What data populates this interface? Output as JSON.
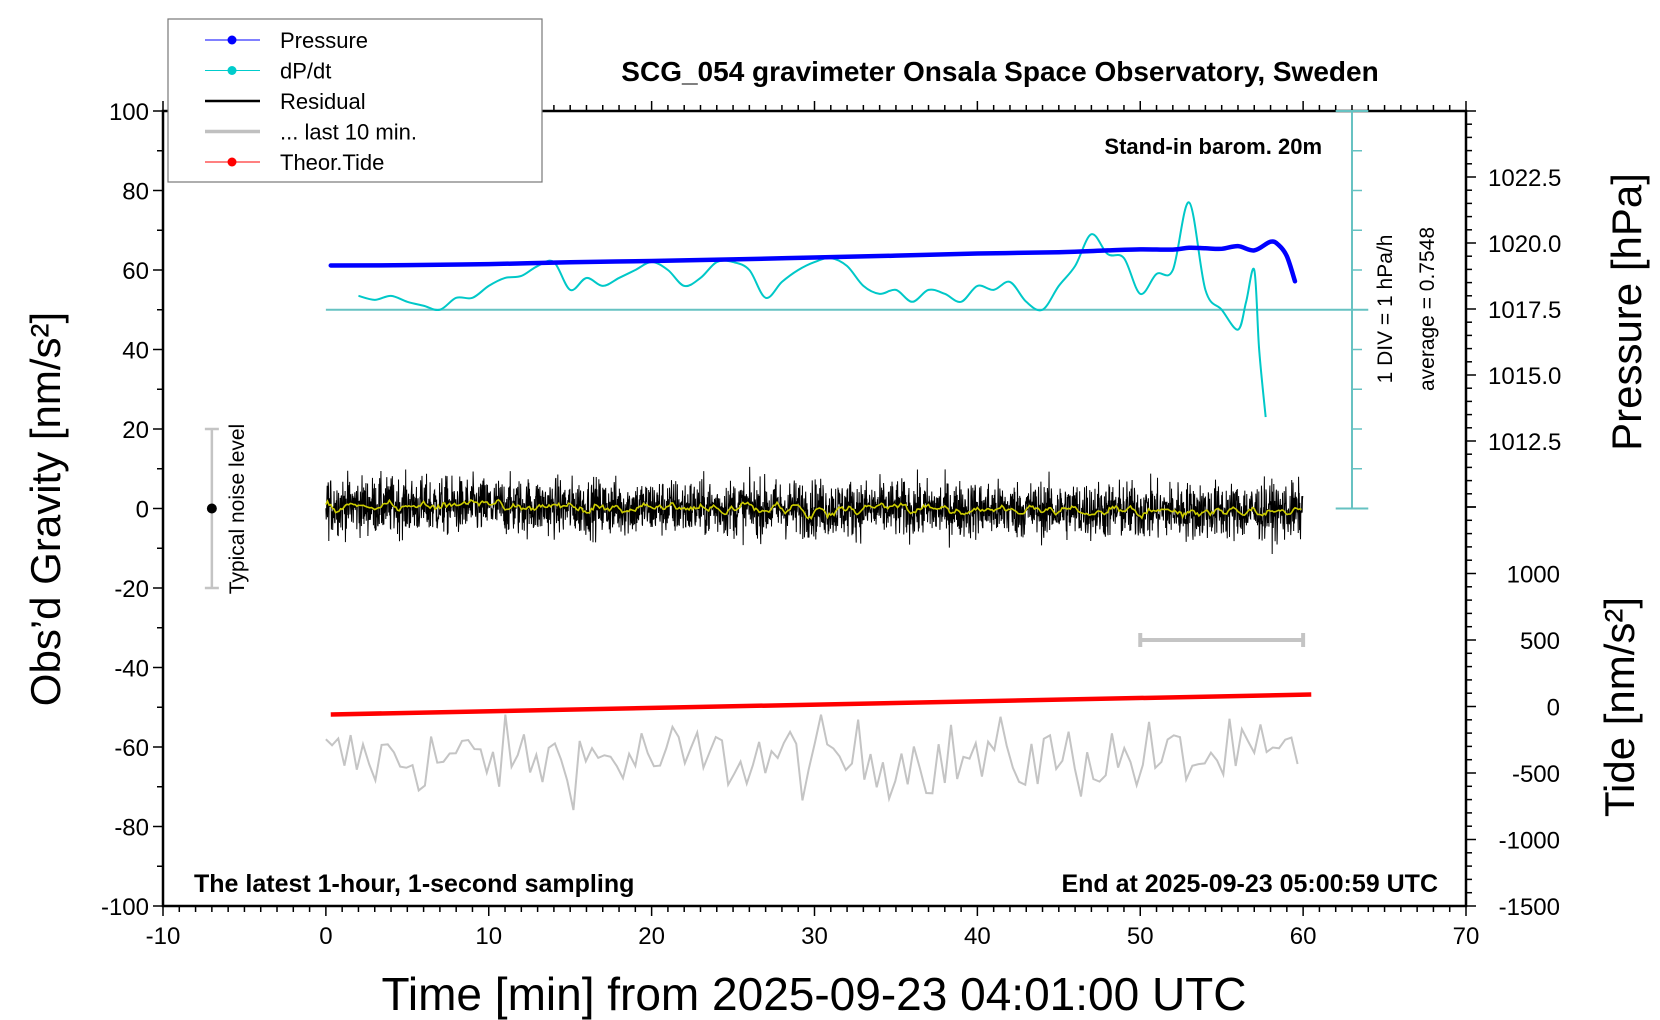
{
  "chart_data": {
    "type": "line",
    "title": "SCG_054 gravimeter Onsala Space Observatory, Sweden",
    "xlabel": "Time [min] from 2025-09-23 04:01:00 UTC",
    "ylabel": "Obs’d Gravity [nm/s²]",
    "y2label": "Pressure [hPa]",
    "y3label": "Tide [nm/s²]",
    "xlim": [
      -10,
      70
    ],
    "ylim": [
      -100,
      100
    ],
    "y2lim": [
      1010,
      1025
    ],
    "y3lim": [
      -1500,
      1500
    ],
    "grid": false,
    "legend_position": "top-left",
    "x_ticks": [
      "-10",
      "0",
      "10",
      "20",
      "30",
      "40",
      "50",
      "60",
      "70"
    ],
    "y_ticks": [
      "100",
      "80",
      "60",
      "40",
      "20",
      "0",
      "-20",
      "-40",
      "-60",
      "-80",
      "-100"
    ],
    "y2_ticks": [
      "1022.5",
      "1020.0",
      "1017.5",
      "1015.0",
      "1012.5"
    ],
    "y3_ticks": [
      "1000",
      "500",
      "0",
      "-500",
      "-1000",
      "-1500"
    ],
    "legend": [
      {
        "label": "Pressure",
        "color": "#0000ff",
        "marker": "dot"
      },
      {
        "label": "dP/dt",
        "color": "#00cccc",
        "marker": "dot"
      },
      {
        "label": "Residual",
        "color": "#000000",
        "marker": "line"
      },
      {
        "label": "... last 10 min.",
        "color": "#c0c0c0",
        "marker": "line"
      },
      {
        "label": "Theor.Tide",
        "color": "#ff0000",
        "marker": "dot"
      }
    ],
    "annotations": {
      "barometer": "Stand-in barom. 20m",
      "sampling": "The latest 1-hour, 1-second sampling",
      "end_time": "End at 2025-09-23 05:00:59 UTC",
      "noise": "Typical noise level",
      "div": "1 DIV = 1 hPa/h",
      "average": "average = 0.7548"
    },
    "noise_bar": {
      "x": -7,
      "center": 0,
      "range": [
        -20,
        20
      ]
    },
    "last10_bar": {
      "x_range": [
        50,
        60
      ],
      "tide_value": 500
    },
    "series": {
      "pressure_hPa": {
        "x": [
          0.3,
          5,
          10,
          15,
          20,
          25,
          30,
          35,
          40,
          45,
          48,
          50,
          52,
          53,
          54,
          55,
          56,
          57,
          58,
          58.5,
          59,
          59.5
        ],
        "y": [
          1019.15,
          1019.16,
          1019.2,
          1019.27,
          1019.32,
          1019.38,
          1019.45,
          1019.52,
          1019.6,
          1019.65,
          1019.72,
          1019.76,
          1019.75,
          1019.82,
          1019.8,
          1019.78,
          1019.88,
          1019.72,
          1020.05,
          1019.92,
          1019.5,
          1018.55
        ]
      },
      "dpdt_hPa_per_h_from_average": {
        "x": [
          2,
          3,
          4,
          5,
          6,
          7,
          8,
          9,
          10,
          11,
          12,
          13,
          14,
          15,
          16,
          17,
          18,
          19,
          20,
          21,
          22,
          23,
          24,
          25,
          26,
          27,
          28,
          29,
          30,
          31,
          32,
          33,
          34,
          35,
          36,
          37,
          38,
          39,
          40,
          41,
          42,
          43,
          44,
          45,
          46,
          47,
          48,
          49,
          50,
          51,
          52,
          53,
          54,
          55,
          56,
          56.5,
          57,
          57.3,
          57.7
        ],
        "y": [
          0.35,
          0.25,
          0.35,
          0.2,
          0.1,
          0.0,
          0.3,
          0.3,
          0.6,
          0.8,
          0.85,
          1.1,
          1.2,
          0.5,
          0.8,
          0.6,
          0.8,
          1.0,
          1.2,
          1.0,
          0.6,
          0.8,
          1.2,
          1.2,
          1.0,
          0.3,
          0.7,
          1.0,
          1.2,
          1.3,
          1.1,
          0.6,
          0.4,
          0.5,
          0.2,
          0.5,
          0.4,
          0.2,
          0.6,
          0.5,
          0.7,
          0.2,
          0.0,
          0.6,
          1.1,
          1.9,
          1.4,
          1.3,
          0.4,
          0.9,
          1.0,
          2.7,
          0.5,
          0.0,
          -0.5,
          0.2,
          1.0,
          -1.0,
          -2.7
        ]
      },
      "theor_tide_nm_s2": {
        "x": [
          0.3,
          60.5
        ],
        "y": [
          -60,
          90
        ]
      },
      "residual_nm_s2": {
        "x_range": [
          0,
          60
        ],
        "spread": 8
      },
      "last10_nm_s2": {
        "x_range": [
          0,
          60
        ],
        "level": -63,
        "spread": 9
      }
    },
    "colors": {
      "pressure": "#0000ff",
      "dpdt": "#00c8c8",
      "dpdt_axis": "#66c2c2",
      "residual": "#000000",
      "smoothed": "#cccc00",
      "last10": "#c4c4c4",
      "tide": "#ff0000"
    }
  }
}
